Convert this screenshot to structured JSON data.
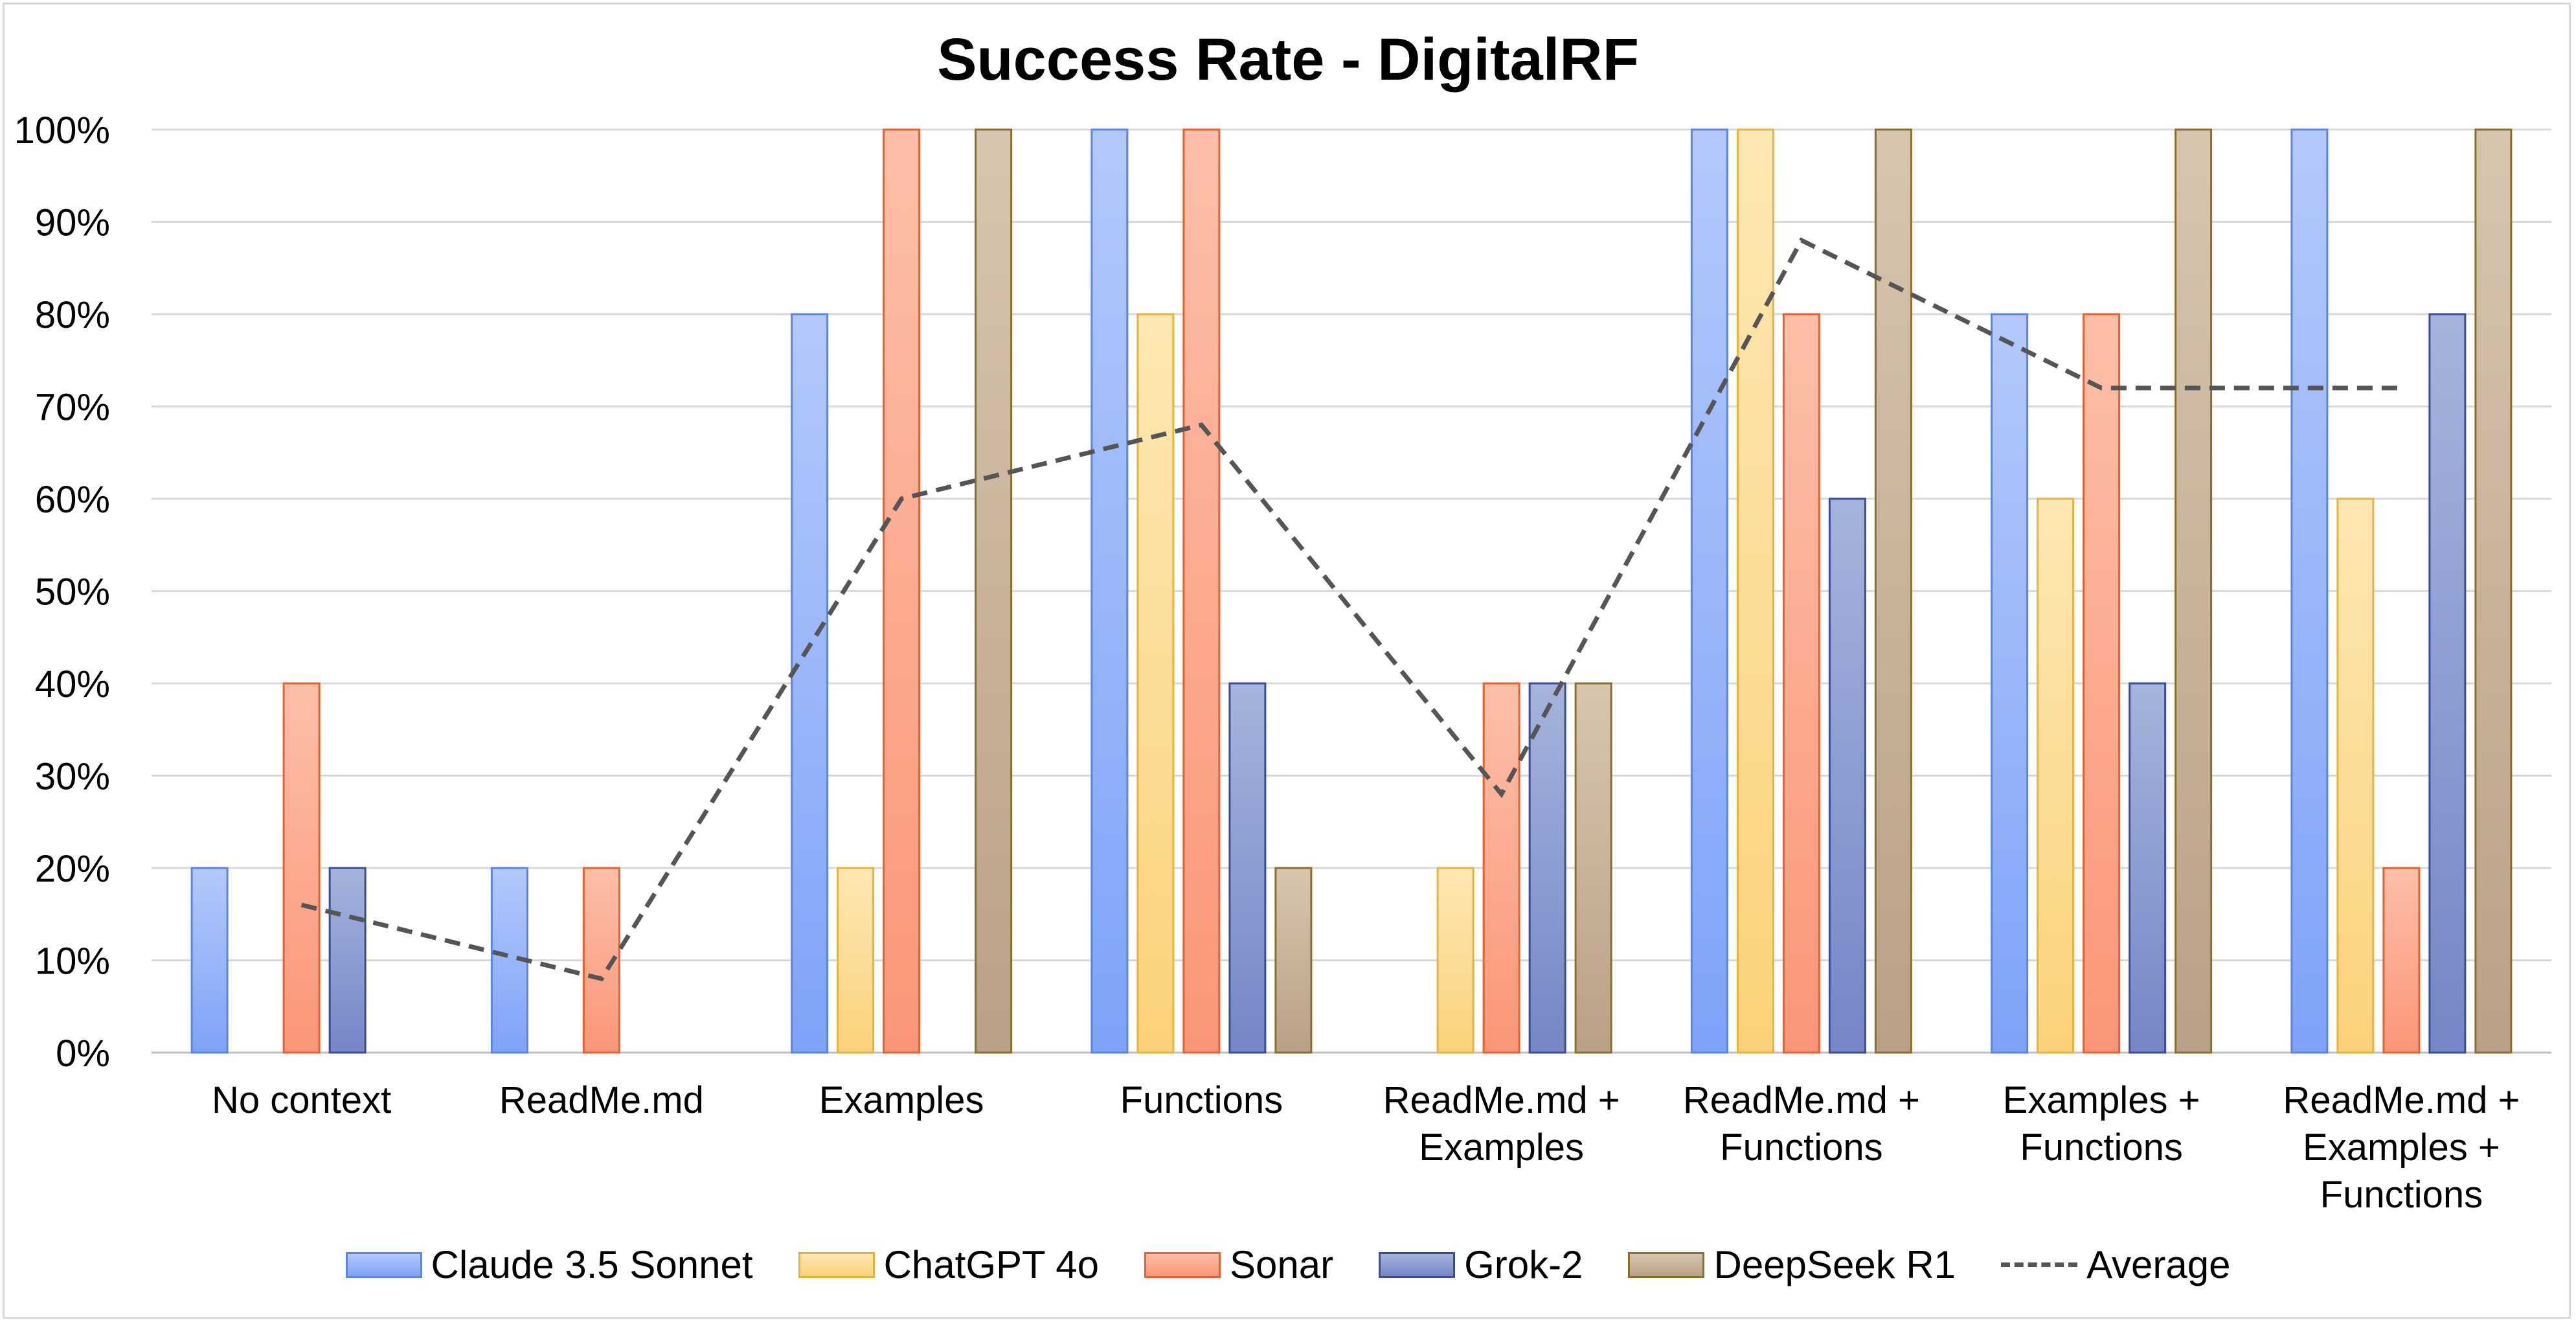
{
  "chart_data": {
    "type": "bar",
    "title": "Success Rate - DigitalRF",
    "categories": [
      [
        "No context"
      ],
      [
        "ReadMe.md"
      ],
      [
        "Examples"
      ],
      [
        "Functions"
      ],
      [
        "ReadMe.md +",
        "Examples"
      ],
      [
        "ReadMe.md +",
        "Functions"
      ],
      [
        "Examples +",
        "Functions"
      ],
      [
        "ReadMe.md +",
        "Examples +",
        "Functions"
      ]
    ],
    "series": [
      {
        "name": "Claude 3.5 Sonnet",
        "values": [
          20,
          20,
          80,
          100,
          0,
          100,
          80,
          100
        ],
        "fill_top": "#b4c9fb",
        "fill_bottom": "#7ea3f7",
        "stroke": "#5b84e6"
      },
      {
        "name": "ChatGPT 4o",
        "values": [
          0,
          0,
          20,
          80,
          20,
          100,
          60,
          60
        ],
        "fill_top": "#fde7b3",
        "fill_bottom": "#fbd27a",
        "stroke": "#e8b33c"
      },
      {
        "name": "Sonar",
        "values": [
          40,
          20,
          100,
          100,
          40,
          80,
          80,
          20
        ],
        "fill_top": "#fdbfa8",
        "fill_bottom": "#fa9678",
        "stroke": "#e8602e"
      },
      {
        "name": "Grok-2",
        "values": [
          20,
          0,
          0,
          40,
          40,
          60,
          40,
          80
        ],
        "fill_top": "#a5b3dc",
        "fill_bottom": "#7686c6",
        "stroke": "#3a4d96"
      },
      {
        "name": "DeepSeek R1",
        "values": [
          0,
          0,
          100,
          20,
          40,
          100,
          100,
          100
        ],
        "fill_top": "#d7c5ae",
        "fill_bottom": "#b9a187",
        "stroke": "#8a6e2c"
      }
    ],
    "average": {
      "name": "Average",
      "values": [
        16,
        8,
        60,
        68,
        28,
        88,
        72,
        72
      ],
      "color": "#555555"
    },
    "ylim": [
      0,
      100
    ],
    "yticks": [
      0,
      10,
      20,
      30,
      40,
      50,
      60,
      70,
      80,
      90,
      100
    ],
    "ytick_suffix": "%",
    "grid": true,
    "legend_position": "bottom"
  }
}
